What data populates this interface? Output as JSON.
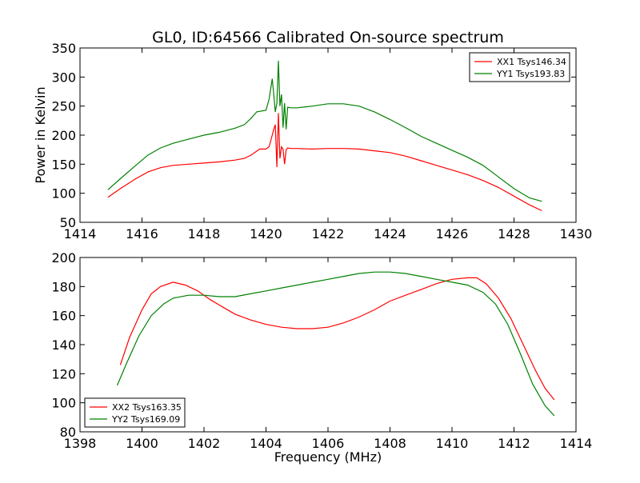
{
  "chart_data": [
    {
      "type": "line",
      "title": "GL0, ID:64566 Calibrated On-source spectrum",
      "xlabel": "",
      "ylabel": "Power in Kelvin",
      "xlim": [
        1414,
        1430
      ],
      "ylim": [
        50,
        350
      ],
      "xticks": [
        1414,
        1416,
        1418,
        1420,
        1422,
        1424,
        1426,
        1428,
        1430
      ],
      "yticks": [
        50,
        100,
        150,
        200,
        250,
        300,
        350
      ],
      "legend_position": "top-right",
      "series": [
        {
          "name": "XX1 Tsys146.34",
          "color": "#ff0000",
          "x": [
            1414.9,
            1415.3,
            1415.8,
            1416.2,
            1416.6,
            1417.0,
            1417.5,
            1418.0,
            1418.5,
            1419.0,
            1419.3,
            1419.5,
            1419.8,
            1420.0,
            1420.1,
            1420.2,
            1420.25,
            1420.3,
            1420.35,
            1420.4,
            1420.45,
            1420.5,
            1420.55,
            1420.6,
            1420.65,
            1420.7,
            1420.8,
            1421.0,
            1421.5,
            1422.0,
            1422.5,
            1423.0,
            1423.5,
            1424.0,
            1424.5,
            1425.0,
            1425.5,
            1426.0,
            1426.5,
            1427.0,
            1427.5,
            1428.0,
            1428.5,
            1428.9
          ],
          "y": [
            93,
            108,
            125,
            137,
            144,
            148,
            150,
            152,
            154,
            157,
            160,
            165,
            176,
            176,
            180,
            200,
            210,
            218,
            145,
            238,
            160,
            180,
            176,
            150,
            175,
            178,
            177,
            177,
            176,
            177,
            177,
            176,
            173,
            170,
            164,
            156,
            148,
            140,
            132,
            122,
            110,
            95,
            80,
            70
          ]
        },
        {
          "name": "YY1 Tsys193.83",
          "color": "#008000",
          "x": [
            1414.9,
            1415.3,
            1415.8,
            1416.2,
            1416.6,
            1417.0,
            1417.5,
            1418.0,
            1418.5,
            1419.0,
            1419.3,
            1419.5,
            1419.7,
            1420.0,
            1420.1,
            1420.2,
            1420.25,
            1420.3,
            1420.35,
            1420.4,
            1420.45,
            1420.5,
            1420.55,
            1420.6,
            1420.65,
            1420.7,
            1420.8,
            1421.0,
            1421.5,
            1422.0,
            1422.5,
            1423.0,
            1423.5,
            1424.0,
            1424.5,
            1425.0,
            1425.5,
            1426.0,
            1426.5,
            1427.0,
            1427.5,
            1428.0,
            1428.5,
            1428.9
          ],
          "y": [
            106,
            125,
            148,
            166,
            178,
            186,
            193,
            200,
            205,
            212,
            218,
            228,
            240,
            243,
            262,
            297,
            270,
            240,
            255,
            328,
            250,
            270,
            213,
            255,
            210,
            248,
            247,
            247,
            250,
            254,
            254,
            250,
            240,
            227,
            213,
            198,
            186,
            174,
            162,
            148,
            128,
            108,
            92,
            86
          ]
        }
      ]
    },
    {
      "type": "line",
      "title": "",
      "xlabel": "Frequency (MHz)",
      "ylabel": "",
      "xlim": [
        1398,
        1414
      ],
      "ylim": [
        80,
        200
      ],
      "xticks": [
        1398,
        1400,
        1402,
        1404,
        1406,
        1408,
        1410,
        1412,
        1414
      ],
      "yticks": [
        80,
        100,
        120,
        140,
        160,
        180,
        200
      ],
      "legend_position": "bottom-left",
      "series": [
        {
          "name": "XX2 Tsys163.35",
          "color": "#ff0000",
          "x": [
            1399.3,
            1399.6,
            1400.0,
            1400.3,
            1400.6,
            1401.0,
            1401.4,
            1401.8,
            1402.2,
            1402.6,
            1403.0,
            1403.5,
            1404.0,
            1404.5,
            1405.0,
            1405.5,
            1406.0,
            1406.5,
            1407.0,
            1407.5,
            1408.0,
            1408.5,
            1409.0,
            1409.5,
            1410.0,
            1410.5,
            1410.8,
            1411.1,
            1411.5,
            1411.9,
            1412.3,
            1412.7,
            1413.0,
            1413.3
          ],
          "y": [
            126,
            145,
            164,
            175,
            180,
            183,
            181,
            177,
            171,
            166,
            161,
            157,
            154,
            152,
            151,
            151,
            152,
            155,
            159,
            164,
            170,
            174,
            178,
            182,
            185,
            186,
            186,
            182,
            172,
            158,
            140,
            122,
            110,
            102
          ]
        },
        {
          "name": "YY2 Tsys169.09",
          "color": "#008000",
          "x": [
            1399.2,
            1399.5,
            1399.9,
            1400.3,
            1400.7,
            1401.0,
            1401.5,
            1402.0,
            1402.5,
            1403.0,
            1403.5,
            1404.0,
            1404.5,
            1405.0,
            1405.5,
            1406.0,
            1406.5,
            1407.0,
            1407.5,
            1408.0,
            1408.5,
            1409.0,
            1409.5,
            1410.0,
            1410.5,
            1411.0,
            1411.4,
            1411.8,
            1412.2,
            1412.6,
            1413.0,
            1413.3
          ],
          "y": [
            112,
            127,
            146,
            160,
            168,
            172,
            174,
            174,
            173,
            173,
            175,
            177,
            179,
            181,
            183,
            185,
            187,
            189,
            190,
            190,
            189,
            187,
            185,
            183,
            181,
            176,
            168,
            154,
            134,
            113,
            98,
            91
          ]
        }
      ]
    }
  ]
}
